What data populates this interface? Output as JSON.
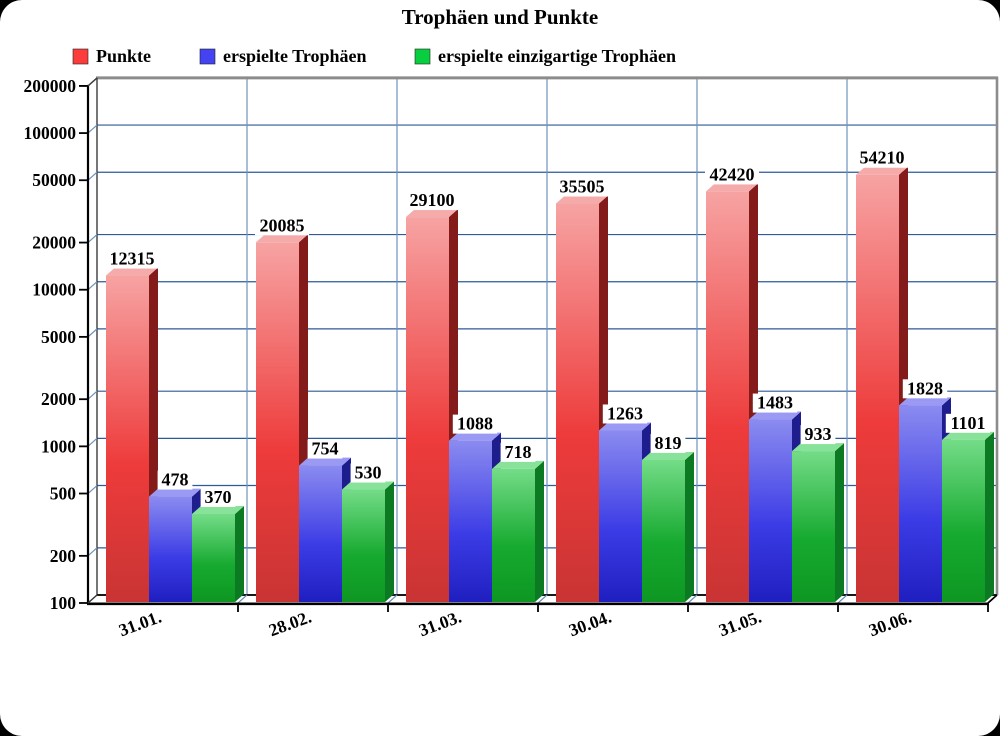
{
  "title": "Trophäen und Punkte",
  "legend": {
    "items": [
      {
        "label": "Punkte",
        "color": "#fb3c3c"
      },
      {
        "label": "erspielte Trophäen",
        "color": "#4343f2"
      },
      {
        "label": "erspielte einzigartige Trophäen",
        "color": "#09cf40"
      }
    ]
  },
  "chart_data": {
    "type": "bar",
    "style": "3d",
    "scale_y": "log",
    "title": "Trophäen und Punkte",
    "categories": [
      "31.01.",
      "28.02.",
      "31.03.",
      "30.04.",
      "31.05.",
      "30.06."
    ],
    "series": [
      {
        "name": "Punkte",
        "values": [
          12315,
          20085,
          29100,
          35505,
          42420,
          54210
        ],
        "color_front_top": "#f7a3a3",
        "color_front_mid": "#ee3b3b",
        "color_front_bottom": "#c93434",
        "color_side": "#841b1b",
        "color_top": "#f6abab"
      },
      {
        "name": "erspielte Trophäen",
        "values": [
          478,
          754,
          1088,
          1263,
          1483,
          1828
        ],
        "color_front_top": "#8b8bf0",
        "color_front_mid": "#3c3ce6",
        "color_front_bottom": "#1f1fc0",
        "color_side": "#1d1d8e",
        "color_top": "#9a9af4"
      },
      {
        "name": "erspielte einzigartige Trophäen",
        "values": [
          370,
          530,
          718,
          819,
          933,
          1101
        ],
        "color_front_top": "#74dc88",
        "color_front_mid": "#17aa30",
        "color_front_bottom": "#0d9722",
        "color_side": "#0c7a22",
        "color_top": "#89e299"
      }
    ],
    "yticks": [
      200000,
      100000,
      50000,
      20000,
      10000,
      5000,
      2000,
      1000,
      500,
      200,
      100
    ],
    "ylim": [
      100,
      200000
    ],
    "grid": true,
    "grid_color_h": "#2e5a99",
    "grid_color_v": "#6e92bb",
    "legend_position": "top-left"
  }
}
